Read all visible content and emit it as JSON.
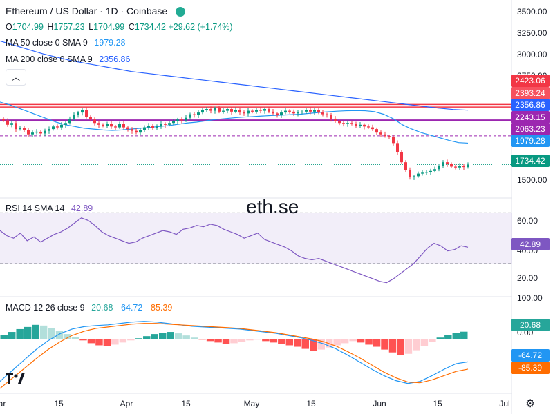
{
  "header": {
    "title": "Ethereum / US Dollar · 1D · Coinbase",
    "ohlc": {
      "o_label": "O",
      "o_value": "1704.99",
      "h_label": "H",
      "h_value": "1757.23",
      "l_label": "L",
      "l_value": "1704.99",
      "c_label": "C",
      "c_value": "1734.42",
      "change": "+29.62 (+1.74%)"
    },
    "ma50_label": "MA 50 close 0 SMA 9",
    "ma50_value": "1979.28",
    "ma200_label": "MA 200 close 0 SMA 9",
    "ma200_value": "2356.86",
    "rsi_label": "RSI 14 SMA 14",
    "rsi_value": "42.89",
    "macd_label": "MACD 12 26 close 9",
    "macd_hist_value": "20.68",
    "macd_value": "-64.72",
    "signal_value": "-85.39"
  },
  "watermark": "eth.se",
  "price_axis": {
    "ticks": [
      "3500.00",
      "3250.00",
      "3000.00",
      "2750.00",
      "1500.00"
    ]
  },
  "rsi_axis": {
    "ticks": [
      "60.00",
      "40.00",
      "20.00"
    ]
  },
  "macd_axis": {
    "ticks": [
      "100.00",
      "0.00"
    ]
  },
  "price_boxes": [
    {
      "label": "2423.06",
      "color": "#f23645"
    },
    {
      "label": "2393.24",
      "color": "#f7525f"
    },
    {
      "label": "2356.86",
      "color": "#2962ff"
    },
    {
      "label": "2243.15",
      "color": "#9c27b0"
    },
    {
      "label": "2063.23",
      "color": "#9c27b0"
    },
    {
      "label": "1979.28",
      "color": "#2196f3"
    },
    {
      "label": "1734.42",
      "color": "#089981"
    }
  ],
  "rsi_box": {
    "label": "42.89",
    "color": "#7e57c2"
  },
  "macd_boxes": [
    {
      "label": "20.68",
      "color": "#26a69a"
    },
    {
      "label": "-64.72",
      "color": "#2196f3"
    },
    {
      "label": "-85.39",
      "color": "#ff6d00"
    }
  ],
  "x_axis": {
    "labels": [
      "ar",
      "15",
      "Apr",
      "15",
      "May",
      "15",
      "Jun",
      "15",
      "Jul"
    ]
  },
  "colors": {
    "up": "#089981",
    "down": "#f23645",
    "ma50": "#2196f3",
    "ma200": "#2962ff",
    "resistance": "#f23645",
    "support": "#9c27b0",
    "rsi": "#7e57c2",
    "rsi_band": "#7e57c2",
    "macd": "#2196f3",
    "signal": "#ff6d00",
    "hist_up": "#26a69a",
    "hist_up_light": "#b2dfdb",
    "hist_down": "#ff5252",
    "hist_down_light": "#ffcdd2"
  },
  "icons": {
    "collapse": "chevron-up-icon",
    "settings": "gear-icon",
    "logo": "tradingview-logo",
    "live": "live-status-dot"
  },
  "chart_data": {
    "type": "candlestick",
    "title": "Ethereum / US Dollar · 1D · Coinbase",
    "start_date": "2023-03-01",
    "price_range": [
      1350,
      3620
    ],
    "closes": [
      2240,
      2190,
      2210,
      2140,
      2150,
      2130,
      2080,
      2100,
      2110,
      2090,
      2120,
      2140,
      2170,
      2160,
      2190,
      2210,
      2260,
      2300,
      2330,
      2360,
      2280,
      2250,
      2210,
      2190,
      2180,
      2200,
      2170,
      2160,
      2200,
      2160,
      2140,
      2120,
      2100,
      2130,
      2160,
      2180,
      2150,
      2170,
      2200,
      2190,
      2210,
      2230,
      2250,
      2240,
      2270,
      2310,
      2300,
      2330,
      2360,
      2370,
      2350,
      2380,
      2340,
      2350,
      2370,
      2340,
      2360,
      2330,
      2320,
      2350,
      2340,
      2360,
      2350,
      2370,
      2340,
      2320,
      2300,
      2330,
      2350,
      2340,
      2320,
      2330,
      2340,
      2360,
      2340,
      2360,
      2330,
      2310,
      2300,
      2260,
      2230,
      2210,
      2200,
      2210,
      2200,
      2180,
      2190,
      2170,
      2160,
      2140,
      2100,
      2080,
      2060,
      2050,
      1980,
      1880,
      1760,
      1670,
      1590,
      1600,
      1630,
      1640,
      1650,
      1660,
      1680,
      1720,
      1760,
      1740,
      1710,
      1700,
      1720,
      1705,
      1734.42
    ],
    "ma50": [
      2450,
      2420,
      2380,
      2340,
      2300,
      2260,
      2220,
      2190,
      2170,
      2150,
      2140,
      2130,
      2125,
      2130,
      2140,
      2150,
      2160,
      2170,
      2180,
      2195,
      2210,
      2220,
      2235,
      2250,
      2260,
      2270,
      2278,
      2284,
      2290,
      2296,
      2300,
      2305,
      2310,
      2320,
      2330,
      2338,
      2345,
      2350,
      2352,
      2350,
      2340,
      2310,
      2260,
      2190,
      2140,
      2100,
      2070,
      2040,
      2010,
      1985,
      1979.28
    ],
    "ma200": [
      3150,
      3100,
      3050,
      3000,
      2960,
      2920,
      2890,
      2860,
      2830,
      2800,
      2780,
      2760,
      2740,
      2720,
      2700,
      2680,
      2660,
      2640,
      2620,
      2600,
      2580,
      2560,
      2540,
      2520,
      2500,
      2480,
      2460,
      2440,
      2420,
      2400,
      2380,
      2365,
      2356.86
    ],
    "resistance_lines": [
      2423.06,
      2393.24
    ],
    "support_lines": [
      2243.15,
      2063.23
    ],
    "rsi": [
      56,
      52,
      50,
      54,
      48,
      51,
      47,
      50,
      53,
      55,
      58,
      62,
      66,
      64,
      60,
      55,
      52,
      50,
      48,
      46,
      47,
      50,
      52,
      54,
      56,
      55,
      53,
      57,
      58,
      60,
      59,
      61,
      60,
      57,
      55,
      53,
      50,
      52,
      54,
      49,
      47,
      45,
      43,
      40,
      36,
      34,
      33,
      34,
      32,
      30,
      28,
      26,
      24,
      22,
      20,
      18,
      16,
      15,
      18,
      22,
      26,
      30,
      36,
      42,
      46,
      44,
      40,
      41,
      44,
      42.89
    ],
    "rsi_levels": [
      70,
      30
    ],
    "macd_hist": [
      12,
      20,
      28,
      34,
      40,
      38,
      30,
      22,
      14,
      6,
      -4,
      -12,
      -18,
      -20,
      -16,
      -10,
      -4,
      2,
      8,
      14,
      18,
      20,
      16,
      10,
      4,
      -2,
      -6,
      -10,
      -14,
      -12,
      -8,
      -4,
      -2,
      -6,
      -10,
      -14,
      -18,
      -22,
      -28,
      -34,
      -30,
      -24,
      -18,
      -12,
      -6,
      -10,
      -16,
      -22,
      -30,
      -38,
      -46,
      -42,
      -32,
      -20,
      -8,
      4,
      12,
      18,
      20.68
    ],
    "macd": [
      -120,
      -90,
      -60,
      -30,
      -5,
      15,
      28,
      35,
      38,
      40,
      44,
      48,
      50,
      48,
      44,
      40,
      36,
      34,
      32,
      30,
      28,
      24,
      20,
      16,
      10,
      4,
      -4,
      -14,
      -28,
      -46,
      -66,
      -86,
      -104,
      -118,
      -126,
      -120,
      -104,
      -86,
      -70,
      -64.72
    ],
    "signal": [
      -140,
      -112,
      -84,
      -56,
      -30,
      -8,
      10,
      22,
      30,
      34,
      38,
      42,
      44,
      44,
      42,
      40,
      38,
      36,
      34,
      32,
      30,
      26,
      22,
      18,
      12,
      6,
      0,
      -8,
      -20,
      -36,
      -54,
      -74,
      -94,
      -110,
      -122,
      -124,
      -116,
      -104,
      -92,
      -85.39
    ]
  }
}
